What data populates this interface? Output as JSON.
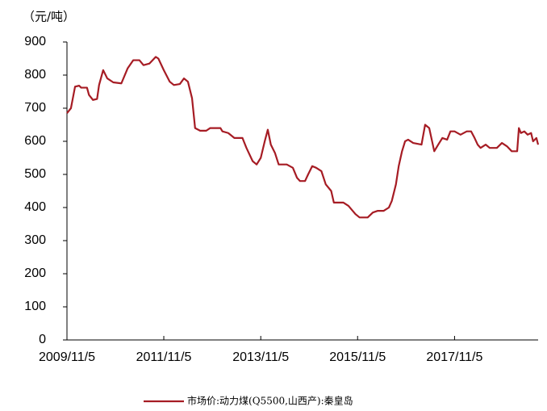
{
  "chart_data": {
    "type": "line",
    "y_label": "（元/吨）",
    "x": [
      "2009/11/5",
      "2009/12/5",
      "2010/1/5",
      "2010/2/5",
      "2010/2/20",
      "2010/4/5",
      "2010/4/20",
      "2010/5/20",
      "2010/6/20",
      "2010/7/5",
      "2010/8/5",
      "2010/9/5",
      "2010/10/20",
      "2010/12/20",
      "2011/2/5",
      "2011/3/20",
      "2011/5/5",
      "2011/6/5",
      "2011/7/20",
      "2011/9/5",
      "2011/9/25",
      "2011/11/5",
      "2011/12/20",
      "2012/1/20",
      "2012/3/5",
      "2012/4/5",
      "2012/5/5",
      "2012/6/5",
      "2012/6/28",
      "2012/8/5",
      "2012/9/20",
      "2012/10/20",
      "2013/1/5",
      "2013/1/20",
      "2013/3/5",
      "2013/4/20",
      "2013/6/20",
      "2013/7/20",
      "2013/9/5",
      "2013/10/5",
      "2013/11/5",
      "2013/12/5",
      "2013/12/28",
      "2014/1/20",
      "2014/2/20",
      "2014/3/20",
      "2014/5/20",
      "2014/7/5",
      "2014/8/5",
      "2014/8/28",
      "2014/10/5",
      "2014/10/28",
      "2014/11/28",
      "2014/12/28",
      "2015/2/5",
      "2015/3/10",
      "2015/4/20",
      "2015/5/10",
      "2015/7/20",
      "2015/8/28",
      "2015/10/20",
      "2015/11/20",
      "2016/1/20",
      "2016/2/28",
      "2016/4/5",
      "2016/5/20",
      "2016/6/28",
      "2016/7/20",
      "2016/8/20",
      "2016/9/10",
      "2016/10/5",
      "2016/10/28",
      "2016/11/20",
      "2016/12/28",
      "2017/3/1",
      "2017/3/28",
      "2017/4/28",
      "2017/6/5",
      "2017/7/5",
      "2017/8/5",
      "2017/9/10",
      "2017/10/5",
      "2017/11/5",
      "2017/12/20",
      "2018/2/5",
      "2018/3/10",
      "2018/4/5",
      "2018/4/28",
      "2018/5/20",
      "2018/6/28",
      "2018/7/28",
      "2018/9/20",
      "2018/10/28",
      "2018/12/5",
      "2019/1/10",
      "2019/2/20",
      "2019/3/5",
      "2019/3/20",
      "2019/4/15",
      "2019/5/10",
      "2019/6/5",
      "2019/6/20",
      "2019/7/15",
      "2019/7/28"
    ],
    "series": [
      {
        "name": "市场价:动力煤(Q5500,山西产):秦皇岛",
        "color": "#a61c24",
        "values": [
          685,
          700,
          765,
          768,
          762,
          762,
          740,
          725,
          728,
          770,
          815,
          790,
          778,
          775,
          820,
          845,
          845,
          830,
          835,
          855,
          850,
          815,
          780,
          770,
          773,
          790,
          780,
          730,
          640,
          632,
          632,
          640,
          640,
          630,
          625,
          610,
          610,
          580,
          540,
          530,
          550,
          600,
          635,
          590,
          565,
          530,
          530,
          520,
          490,
          480,
          480,
          500,
          525,
          520,
          510,
          470,
          450,
          415,
          415,
          405,
          380,
          370,
          370,
          385,
          390,
          390,
          400,
          420,
          470,
          525,
          570,
          600,
          605,
          595,
          590,
          650,
          640,
          570,
          590,
          610,
          605,
          630,
          630,
          620,
          630,
          630,
          610,
          590,
          580,
          590,
          580,
          580,
          595,
          585,
          570,
          570,
          640,
          625,
          630,
          620,
          625,
          600,
          610,
          590
        ]
      }
    ],
    "xlim": [
      "2009/11/5",
      "2019/7/28"
    ],
    "xticks": [
      "2009/11/5",
      "2011/11/5",
      "2013/11/5",
      "2015/11/5",
      "2017/11/5"
    ],
    "ylim": [
      0,
      900
    ],
    "yticks": [
      0,
      100,
      200,
      300,
      400,
      500,
      600,
      700,
      800,
      900
    ],
    "legend": "bottom"
  }
}
